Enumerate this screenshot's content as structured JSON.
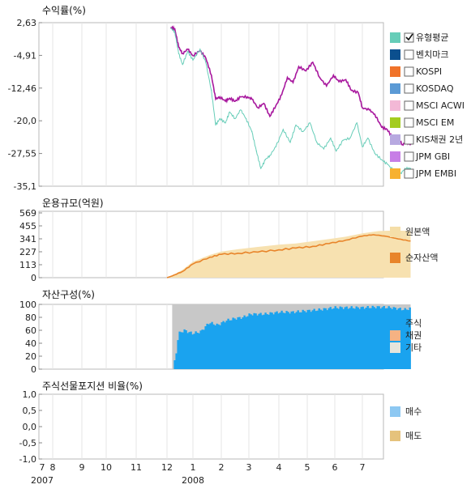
{
  "x_axis": {
    "months": [
      "7",
      "8",
      "9",
      "10",
      "11",
      "12",
      "1",
      "2",
      "3",
      "4",
      "5",
      "6",
      "7"
    ],
    "years": [
      "2007",
      "2008"
    ]
  },
  "chart_data": [
    {
      "type": "line",
      "title": "수익률(%)",
      "y_ticks": [
        "2,63",
        "-4,91",
        "-12,46",
        "-20,0",
        "-27,55",
        "-35,1"
      ],
      "ylim": [
        -35.1,
        2.63
      ],
      "legend_placement": "right",
      "legend": [
        {
          "label": "유형평균",
          "color": "#66cdb8",
          "checked": true
        },
        {
          "label": "벤치마크",
          "color": "#0b4f8e",
          "checked": false
        },
        {
          "label": "KOSPI",
          "color": "#f0732a",
          "checked": false
        },
        {
          "label": "KOSDAQ",
          "color": "#5b9ad5",
          "checked": false
        },
        {
          "label": "MSCI ACWI",
          "color": "#f3b8d6",
          "checked": false
        },
        {
          "label": "MSCI EM",
          "color": "#a4cc1f",
          "checked": false
        },
        {
          "label": "KIS채권 2년",
          "color": "#b7a9e0",
          "checked": false
        },
        {
          "label": "JPM GBI",
          "color": "#c77ee6",
          "checked": false
        },
        {
          "label": "JPM EMBI",
          "color": "#f7b130",
          "checked": false
        }
      ],
      "series": [
        {
          "color": "#a8189e",
          "values": [
            [
              5.15,
              1.5
            ],
            [
              5.3,
              1.2
            ],
            [
              5.45,
              -3
            ],
            [
              5.6,
              -4.5
            ],
            [
              5.8,
              -3.5
            ],
            [
              6.0,
              -5
            ],
            [
              6.25,
              -3.8
            ],
            [
              6.45,
              -5.5
            ],
            [
              6.65,
              -9.5
            ],
            [
              6.8,
              -15
            ],
            [
              6.95,
              -14.5
            ],
            [
              7.15,
              -15.5
            ],
            [
              7.3,
              -14.8
            ],
            [
              7.5,
              -15.5
            ],
            [
              7.7,
              -14.5
            ],
            [
              7.95,
              -14.5
            ],
            [
              8.1,
              -15
            ],
            [
              8.3,
              -17
            ],
            [
              8.5,
              -16
            ],
            [
              8.7,
              -19
            ],
            [
              8.9,
              -16.5
            ],
            [
              9.1,
              -14
            ],
            [
              9.3,
              -10
            ],
            [
              9.5,
              -11.2
            ],
            [
              9.7,
              -7.5
            ],
            [
              9.95,
              -8.5
            ],
            [
              10.2,
              -6.5
            ],
            [
              10.45,
              -10
            ],
            [
              10.7,
              -12
            ],
            [
              10.95,
              -9.5
            ],
            [
              11.15,
              -11
            ],
            [
              11.4,
              -10.5
            ],
            [
              11.6,
              -13
            ],
            [
              11.85,
              -13.5
            ],
            [
              12.0,
              -17
            ],
            [
              12.25,
              -17.5
            ],
            [
              12.45,
              -18.5
            ],
            [
              12.7,
              -21.5
            ],
            [
              12.9,
              -22
            ],
            [
              13.1,
              -24
            ],
            [
              13.3,
              -24
            ],
            [
              13.45,
              -25.5
            ],
            [
              13.6,
              -25
            ],
            [
              13.75,
              -25.5
            ]
          ]
        },
        {
          "color": "#66cdb8",
          "values": [
            [
              5.15,
              1.3
            ],
            [
              5.3,
              0.5
            ],
            [
              5.45,
              -4.5
            ],
            [
              5.6,
              -7
            ],
            [
              5.8,
              -4
            ],
            [
              6.0,
              -6
            ],
            [
              6.25,
              -3.5
            ],
            [
              6.45,
              -6.5
            ],
            [
              6.65,
              -13
            ],
            [
              6.8,
              -21
            ],
            [
              6.95,
              -19.5
            ],
            [
              7.15,
              -20.5
            ],
            [
              7.3,
              -18
            ],
            [
              7.5,
              -19.5
            ],
            [
              7.7,
              -17.5
            ],
            [
              7.9,
              -19.5
            ],
            [
              8.1,
              -22.5
            ],
            [
              8.25,
              -27
            ],
            [
              8.4,
              -31
            ],
            [
              8.55,
              -29
            ],
            [
              8.7,
              -28
            ],
            [
              8.9,
              -26
            ],
            [
              9.15,
              -22
            ],
            [
              9.4,
              -25
            ],
            [
              9.6,
              -21
            ],
            [
              9.85,
              -22.5
            ],
            [
              10.1,
              -20.5
            ],
            [
              10.35,
              -25
            ],
            [
              10.6,
              -26.5
            ],
            [
              10.85,
              -24
            ],
            [
              11.05,
              -27
            ],
            [
              11.3,
              -24.5
            ],
            [
              11.55,
              -24
            ],
            [
              11.8,
              -20.5
            ],
            [
              12.0,
              -26
            ],
            [
              12.2,
              -24
            ],
            [
              12.45,
              -27.5
            ],
            [
              12.7,
              -29
            ],
            [
              12.9,
              -30
            ],
            [
              13.15,
              -31.5
            ],
            [
              13.35,
              -32.5
            ],
            [
              13.55,
              -31
            ],
            [
              13.75,
              -31
            ]
          ]
        }
      ]
    },
    {
      "type": "area",
      "title": "운용규모(억원)",
      "y_ticks": [
        "569",
        "455",
        "341",
        "227",
        "113",
        "0"
      ],
      "ylim": [
        0,
        569
      ],
      "legend_placement": "right",
      "legend": [
        {
          "label": "원본액",
          "color": "#f5dea8"
        },
        {
          "label": "순자산액",
          "color": "#e8842a"
        }
      ],
      "series": [
        {
          "name": "원본액",
          "color": "#f7e1b0",
          "values": [
            [
              5.0,
              0
            ],
            [
              5.2,
              20
            ],
            [
              5.6,
              70
            ],
            [
              6.0,
              140
            ],
            [
              6.6,
              200
            ],
            [
              7.0,
              230
            ],
            [
              7.6,
              250
            ],
            [
              8.3,
              270
            ],
            [
              9.0,
              290
            ],
            [
              9.6,
              300
            ],
            [
              10.2,
              320
            ],
            [
              10.8,
              340
            ],
            [
              11.4,
              360
            ],
            [
              12.0,
              390
            ],
            [
              12.6,
              410
            ],
            [
              13.2,
              415
            ],
            [
              13.75,
              410
            ]
          ]
        },
        {
          "name": "순자산액",
          "color": "#e8842a",
          "values": [
            [
              5.0,
              0
            ],
            [
              5.2,
              15
            ],
            [
              5.6,
              55
            ],
            [
              6.0,
              120
            ],
            [
              6.6,
              180
            ],
            [
              7.0,
              205
            ],
            [
              7.6,
              215
            ],
            [
              8.3,
              225
            ],
            [
              9.0,
              245
            ],
            [
              9.6,
              260
            ],
            [
              10.2,
              275
            ],
            [
              10.8,
              300
            ],
            [
              11.4,
              330
            ],
            [
              12.0,
              365
            ],
            [
              12.4,
              378
            ],
            [
              12.9,
              362
            ],
            [
              13.3,
              340
            ],
            [
              13.75,
              322
            ]
          ]
        }
      ]
    },
    {
      "type": "bar",
      "title": "자산구성(%)",
      "y_ticks": [
        "100",
        "80",
        "60",
        "40",
        "20",
        "0"
      ],
      "ylim": [
        0,
        100
      ],
      "legend_placement": "right",
      "legend": [
        {
          "label": "주식",
          "color": "#1aa3ef"
        },
        {
          "label": "채권",
          "color": "#f5b283"
        },
        {
          "label": "기타",
          "color": "#e5e5dc"
        }
      ],
      "series": [
        {
          "name": "주식",
          "color": "#1aa3ef",
          "values": [
            [
              5.2,
              0
            ],
            [
              5.3,
              20
            ],
            [
              5.4,
              55
            ],
            [
              5.6,
              60
            ],
            [
              5.9,
              55
            ],
            [
              6.2,
              58
            ],
            [
              6.5,
              72
            ],
            [
              6.8,
              68
            ],
            [
              7.1,
              75
            ],
            [
              7.4,
              78
            ],
            [
              7.7,
              80
            ],
            [
              8.0,
              85
            ],
            [
              8.5,
              85
            ],
            [
              9.0,
              88
            ],
            [
              9.5,
              88
            ],
            [
              10.0,
              90
            ],
            [
              10.5,
              92
            ],
            [
              11.0,
              95
            ],
            [
              11.5,
              95
            ],
            [
              12.0,
              95
            ],
            [
              12.5,
              96
            ],
            [
              13.0,
              95
            ],
            [
              13.5,
              92
            ],
            [
              13.75,
              94
            ]
          ]
        },
        {
          "name": "기타",
          "color": "#c8c8c8",
          "values": [
            [
              5.2,
              100
            ],
            [
              13.75,
              100
            ]
          ]
        }
      ]
    },
    {
      "type": "bar",
      "title": "주식선물포지션 비율(%)",
      "y_ticks": [
        "1,0",
        "0,5",
        "0,0",
        "-0,5",
        "-1,0"
      ],
      "ylim": [
        -1.0,
        1.0
      ],
      "legend_placement": "right",
      "legend": [
        {
          "label": "매수",
          "color": "#8dc8f2"
        },
        {
          "label": "매도",
          "color": "#e5c27c"
        }
      ],
      "series": []
    }
  ]
}
